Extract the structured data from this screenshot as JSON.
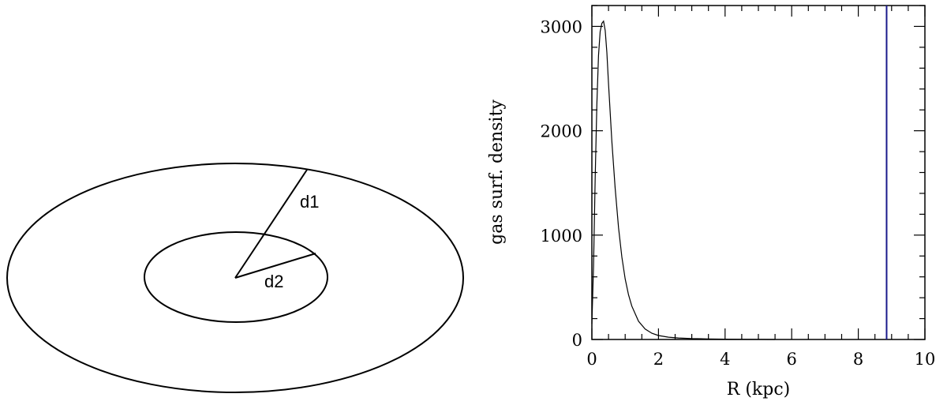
{
  "diagram": {
    "labels": {
      "outer_radius": "d1",
      "inner_radius": "d2"
    }
  },
  "chart_data": {
    "type": "line",
    "title": "",
    "xlabel": "R (kpc)",
    "ylabel": "gas surf. density",
    "xlim": [
      0,
      10
    ],
    "ylim": [
      0,
      3200
    ],
    "xticks": [
      0,
      2,
      4,
      6,
      8,
      10
    ],
    "yticks": [
      0,
      1000,
      2000,
      3000
    ],
    "grid": false,
    "series": [
      {
        "x": [
          0.0,
          0.05,
          0.1,
          0.15,
          0.2,
          0.25,
          0.3,
          0.35,
          0.4,
          0.45,
          0.5,
          0.6,
          0.7,
          0.8,
          0.9,
          1.0,
          1.1,
          1.2,
          1.4,
          1.6,
          1.8,
          2.0,
          2.3,
          2.6,
          3.0,
          3.5,
          4.0,
          5.0,
          5.5
        ],
        "y": [
          150,
          700,
          1550,
          2250,
          2720,
          2950,
          3030,
          3050,
          2960,
          2750,
          2450,
          1900,
          1450,
          1070,
          790,
          580,
          430,
          320,
          175,
          100,
          60,
          38,
          22,
          14,
          8,
          5,
          3,
          1,
          0
        ],
        "color": "#000000"
      }
    ],
    "vlines": [
      {
        "x": 8.85,
        "color": "#1a1a8c"
      }
    ]
  }
}
